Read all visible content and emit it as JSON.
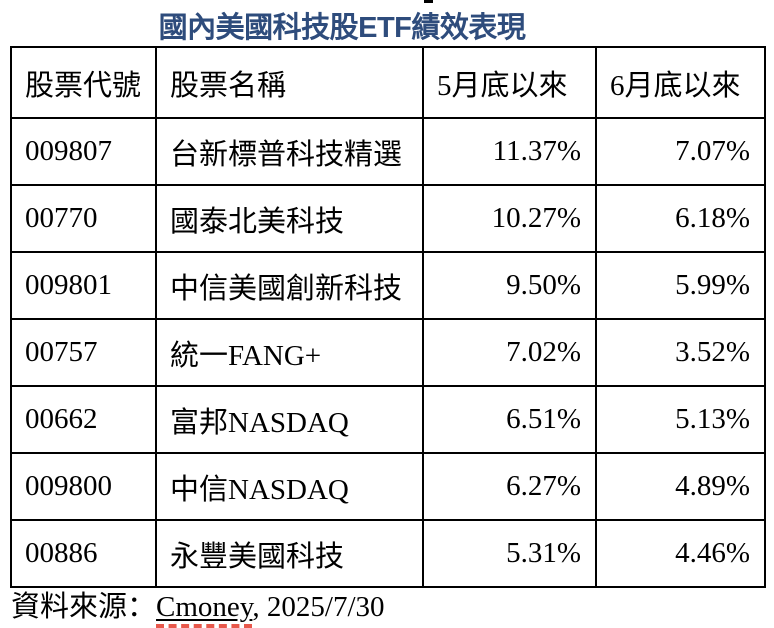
{
  "title": "國內美國科技股ETF績效表現",
  "table": {
    "headers": [
      "股票代號",
      "股票名稱",
      "5月底以來",
      "6月底以來"
    ],
    "rows": [
      {
        "code": "009807",
        "name": "台新標普科技精選",
        "since_may_end": "11.37%",
        "since_june_end": "7.07%"
      },
      {
        "code": "00770",
        "name": "國泰北美科技",
        "since_may_end": "10.27%",
        "since_june_end": "6.18%"
      },
      {
        "code": "009801",
        "name": "中信美國創新科技",
        "since_may_end": "9.50%",
        "since_june_end": "5.99%"
      },
      {
        "code": "00757",
        "name": "統一FANG+",
        "since_may_end": "7.02%",
        "since_june_end": "3.52%"
      },
      {
        "code": "00662",
        "name": "富邦NASDAQ",
        "since_may_end": "6.51%",
        "since_june_end": "5.13%"
      },
      {
        "code": "009800",
        "name": "中信NASDAQ",
        "since_may_end": "6.27%",
        "since_june_end": "4.89%"
      },
      {
        "code": "00886",
        "name": "永豐美國科技",
        "since_may_end": "5.31%",
        "since_june_end": "4.46%"
      }
    ]
  },
  "footer": {
    "prefix": "資料來源：",
    "link": "Cmoney",
    "suffix": ", 2025/7/30"
  },
  "colors": {
    "title_text": "#2E4C7C",
    "table_border": "#000000",
    "body_text": "#000000",
    "spellcheck_underline": "#E8584B"
  },
  "chart_data": {
    "type": "table",
    "title": "國內美國科技股ETF績效表現",
    "columns": [
      "股票代號",
      "股票名稱",
      "5月底以來",
      "6月底以來"
    ],
    "rows": [
      [
        "009807",
        "台新標普科技精選",
        "11.37%",
        "7.07%"
      ],
      [
        "00770",
        "國泰北美科技",
        "10.27%",
        "6.18%"
      ],
      [
        "009801",
        "中信美國創新科技",
        "9.50%",
        "5.99%"
      ],
      [
        "00757",
        "統一FANG+",
        "7.02%",
        "3.52%"
      ],
      [
        "00662",
        "富邦NASDAQ",
        "6.51%",
        "5.13%"
      ],
      [
        "009800",
        "中信NASDAQ",
        "6.27%",
        "4.89%"
      ],
      [
        "00886",
        "永豐美國科技",
        "5.31%",
        "4.46%"
      ]
    ],
    "source": "Cmoney, 2025/7/30"
  }
}
